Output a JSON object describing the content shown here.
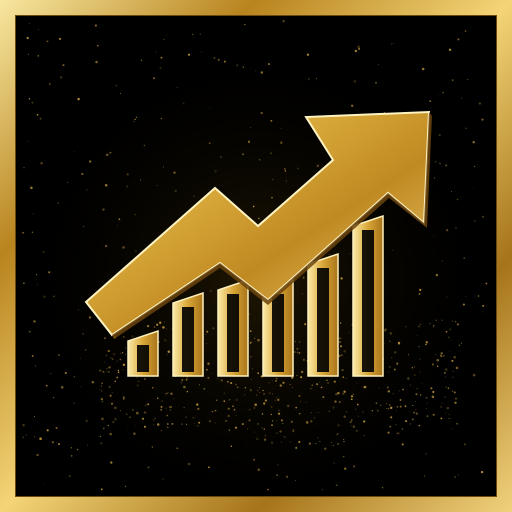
{
  "icon": {
    "name": "growth-chart-arrow-icon",
    "style": "gold-on-black"
  },
  "colors": {
    "background": "#000000",
    "gold_light": "#f7e08a",
    "gold_mid": "#d4a52c",
    "gold_dark": "#8a5a10",
    "sparkle": "#e8b84a"
  },
  "bar_levels": [
    0.28,
    0.52,
    0.6,
    0.6,
    0.76,
    1.0
  ]
}
